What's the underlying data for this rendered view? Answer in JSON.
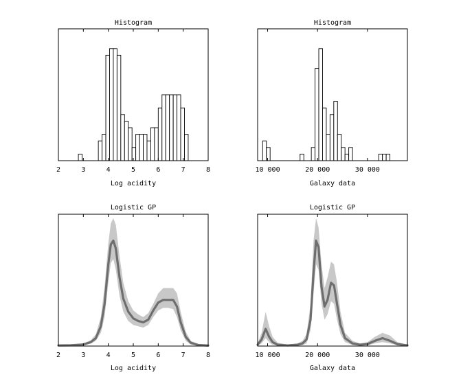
{
  "chart_data": [
    {
      "type": "bar",
      "title": "Histogram",
      "xlabel": "Log acidity",
      "xlim": [
        2,
        8
      ],
      "ylim": [
        0,
        20
      ],
      "xticks": [
        2,
        3,
        4,
        5,
        6,
        7,
        8
      ],
      "xtick_labels": [
        "2",
        "3",
        "4",
        "5",
        "6",
        "7",
        "8"
      ],
      "bin_width": 0.15,
      "bin_starts": [
        2.8,
        3.6,
        3.75,
        3.9,
        4.05,
        4.2,
        4.35,
        4.5,
        4.65,
        4.8,
        4.95,
        5.1,
        5.25,
        5.4,
        5.55,
        5.7,
        5.85,
        6.0,
        6.15,
        6.3,
        6.45,
        6.6,
        6.75,
        6.9,
        7.05
      ],
      "counts": [
        1,
        3,
        4,
        16,
        17,
        17,
        16,
        7,
        6,
        5,
        2,
        4,
        4,
        4,
        3,
        5,
        5,
        8,
        10,
        10,
        10,
        10,
        10,
        8,
        4
      ]
    },
    {
      "type": "bar",
      "title": "Histogram",
      "xlabel": "Galaxy data",
      "xlim": [
        8000,
        38000
      ],
      "ylim": [
        0,
        20
      ],
      "xticks": [
        10000,
        20000,
        30000
      ],
      "xtick_labels": [
        "10 000",
        "20 000",
        "30 000"
      ],
      "bin_width": 750,
      "bin_starts": [
        9000,
        9750,
        16500,
        18750,
        19500,
        20250,
        21000,
        21750,
        22500,
        23250,
        24000,
        24750,
        25500,
        26250,
        32250,
        33000,
        33750
      ],
      "counts": [
        3,
        2,
        1,
        2,
        14,
        17,
        8,
        4,
        7,
        9,
        4,
        2,
        1,
        2,
        1,
        1,
        1
      ]
    },
    {
      "type": "area",
      "title": "Logistic GP",
      "xlabel": "Log acidity",
      "xlim": [
        2,
        8
      ],
      "ylim": [
        0,
        1
      ],
      "xticks": [
        2,
        3,
        4,
        5,
        6,
        7,
        8
      ],
      "xtick_labels": [
        "2",
        "3",
        "4",
        "5",
        "6",
        "7",
        "8"
      ],
      "series": [
        {
          "name": "mean",
          "x": [
            2.0,
            2.5,
            3.0,
            3.3,
            3.5,
            3.7,
            3.85,
            4.0,
            4.1,
            4.2,
            4.3,
            4.45,
            4.6,
            4.8,
            5.0,
            5.2,
            5.4,
            5.6,
            5.8,
            6.0,
            6.2,
            6.4,
            6.6,
            6.75,
            6.9,
            7.1,
            7.3,
            7.6,
            8.0
          ],
          "y": [
            0.005,
            0.006,
            0.012,
            0.03,
            0.06,
            0.15,
            0.32,
            0.62,
            0.77,
            0.8,
            0.74,
            0.52,
            0.36,
            0.26,
            0.21,
            0.19,
            0.18,
            0.2,
            0.27,
            0.33,
            0.35,
            0.35,
            0.35,
            0.3,
            0.18,
            0.07,
            0.025,
            0.008,
            0.004
          ]
        },
        {
          "name": "upper",
          "x": [
            2.0,
            2.5,
            3.0,
            3.3,
            3.5,
            3.7,
            3.85,
            4.0,
            4.1,
            4.2,
            4.3,
            4.45,
            4.6,
            4.8,
            5.0,
            5.2,
            5.4,
            5.6,
            5.8,
            6.0,
            6.2,
            6.4,
            6.6,
            6.75,
            6.9,
            7.1,
            7.3,
            7.6,
            8.0
          ],
          "y": [
            0.01,
            0.012,
            0.02,
            0.045,
            0.09,
            0.22,
            0.45,
            0.78,
            0.93,
            0.97,
            0.92,
            0.68,
            0.48,
            0.34,
            0.27,
            0.24,
            0.22,
            0.25,
            0.32,
            0.4,
            0.44,
            0.44,
            0.44,
            0.4,
            0.26,
            0.11,
            0.04,
            0.015,
            0.01
          ]
        },
        {
          "name": "lower",
          "x": [
            2.0,
            2.5,
            3.0,
            3.3,
            3.5,
            3.7,
            3.85,
            4.0,
            4.1,
            4.2,
            4.3,
            4.45,
            4.6,
            4.8,
            5.0,
            5.2,
            5.4,
            5.6,
            5.8,
            6.0,
            6.2,
            6.4,
            6.6,
            6.75,
            6.9,
            7.1,
            7.3,
            7.6,
            8.0
          ],
          "y": [
            0.002,
            0.003,
            0.006,
            0.018,
            0.04,
            0.1,
            0.22,
            0.48,
            0.63,
            0.66,
            0.58,
            0.38,
            0.26,
            0.19,
            0.16,
            0.15,
            0.14,
            0.16,
            0.22,
            0.27,
            0.29,
            0.29,
            0.28,
            0.22,
            0.12,
            0.04,
            0.012,
            0.004,
            0.002
          ]
        }
      ]
    },
    {
      "type": "area",
      "title": "Logistic GP",
      "xlabel": "Galaxy data",
      "xlim": [
        8000,
        38000
      ],
      "ylim": [
        0,
        1
      ],
      "xticks": [
        10000,
        20000,
        30000
      ],
      "xtick_labels": [
        "10 000",
        "20 000",
        "30 000"
      ],
      "series": [
        {
          "name": "mean",
          "x": [
            8000,
            8800,
            9600,
            10300,
            11000,
            12000,
            14000,
            16000,
            17000,
            17800,
            18600,
            19200,
            19700,
            20200,
            20800,
            21400,
            22000,
            22700,
            23300,
            23900,
            24600,
            25500,
            27000,
            28500,
            30000,
            31500,
            33000,
            34500,
            36000,
            38000
          ],
          "y": [
            0.01,
            0.05,
            0.13,
            0.07,
            0.03,
            0.01,
            0.005,
            0.01,
            0.02,
            0.05,
            0.2,
            0.56,
            0.8,
            0.75,
            0.45,
            0.3,
            0.35,
            0.48,
            0.46,
            0.32,
            0.16,
            0.06,
            0.02,
            0.01,
            0.015,
            0.04,
            0.06,
            0.04,
            0.015,
            0.005
          ]
        },
        {
          "name": "upper",
          "x": [
            8000,
            8800,
            9600,
            10300,
            11000,
            12000,
            14000,
            16000,
            17000,
            17800,
            18600,
            19200,
            19700,
            20200,
            20800,
            21400,
            22000,
            22700,
            23300,
            23900,
            24600,
            25500,
            27000,
            28500,
            30000,
            31500,
            33000,
            34500,
            36000,
            38000
          ],
          "y": [
            0.02,
            0.1,
            0.26,
            0.15,
            0.07,
            0.025,
            0.012,
            0.02,
            0.04,
            0.09,
            0.32,
            0.8,
            0.97,
            0.9,
            0.62,
            0.44,
            0.52,
            0.64,
            0.62,
            0.48,
            0.26,
            0.1,
            0.04,
            0.02,
            0.03,
            0.07,
            0.1,
            0.08,
            0.03,
            0.01
          ]
        },
        {
          "name": "lower",
          "x": [
            8000,
            8800,
            9600,
            10300,
            11000,
            12000,
            14000,
            16000,
            17000,
            17800,
            18600,
            19200,
            19700,
            20200,
            20800,
            21400,
            22000,
            22700,
            23300,
            23900,
            24600,
            25500,
            27000,
            28500,
            30000,
            31500,
            33000,
            34500,
            36000,
            38000
          ],
          "y": [
            0.003,
            0.02,
            0.06,
            0.03,
            0.01,
            0.004,
            0.002,
            0.004,
            0.008,
            0.02,
            0.12,
            0.4,
            0.62,
            0.58,
            0.32,
            0.2,
            0.24,
            0.34,
            0.32,
            0.2,
            0.09,
            0.03,
            0.008,
            0.004,
            0.006,
            0.02,
            0.03,
            0.02,
            0.006,
            0.002
          ]
        }
      ]
    }
  ]
}
